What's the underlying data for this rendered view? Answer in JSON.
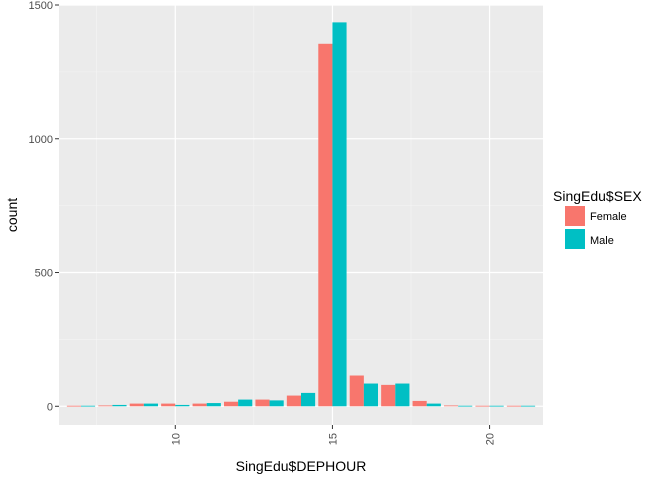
{
  "chart_data": {
    "type": "bar",
    "xlabel": "SingEdu$DEPHOUR",
    "ylabel": "count",
    "xlim": [
      6.3,
      21.7
    ],
    "ylim": [
      -70,
      1500
    ],
    "xticks": [
      10,
      15,
      20
    ],
    "yticks": [
      0,
      500,
      1000,
      1500
    ],
    "grid": true,
    "legend": {
      "title": "SingEdu$SEX",
      "position": "right"
    },
    "x": [
      7,
      8,
      9,
      10,
      11,
      12,
      13,
      14,
      15,
      16,
      17,
      18,
      19,
      20,
      21
    ],
    "series": [
      {
        "name": "Female",
        "color": "#F8766D",
        "values": [
          2,
          3,
          10,
          10,
          10,
          17,
          25,
          40,
          1355,
          115,
          80,
          20,
          3,
          2,
          2
        ]
      },
      {
        "name": "Male",
        "color": "#00BFC4",
        "values": [
          2,
          5,
          10,
          5,
          12,
          25,
          22,
          50,
          1435,
          85,
          85,
          10,
          2,
          2,
          2
        ]
      }
    ]
  }
}
